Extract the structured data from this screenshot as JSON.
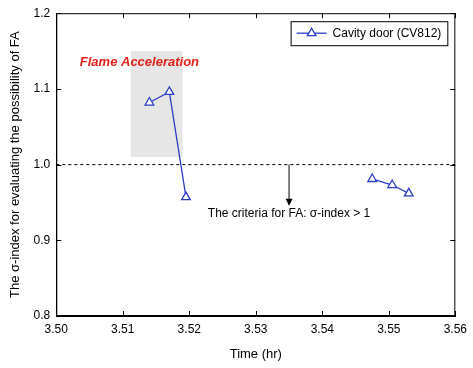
{
  "chart_data": {
    "type": "line",
    "x_label": "Time (hr)",
    "y_label": "The σ-index for evaluating the possibility of FA",
    "x": [
      3.514,
      3.517,
      3.5195,
      null,
      3.5475,
      3.5505,
      3.553
    ],
    "series": [
      {
        "name": "Cavity door (CV812)",
        "color": "#2a3bc4",
        "marker": "triangle",
        "values": [
          1.082,
          1.096,
          0.957,
          null,
          0.981,
          0.973,
          0.962
        ]
      }
    ],
    "xlim": [
      3.5,
      3.56
    ],
    "xticks": [
      {
        "value": 3.5,
        "label": "3.50"
      },
      {
        "value": 3.51,
        "label": "3.51"
      },
      {
        "value": 3.52,
        "label": "3.52"
      },
      {
        "value": 3.53,
        "label": "3.53"
      },
      {
        "value": 3.54,
        "label": "3.54"
      },
      {
        "value": 3.55,
        "label": "3.55"
      },
      {
        "value": 3.56,
        "label": "3.56"
      }
    ],
    "ylim": [
      0.8,
      1.2
    ],
    "yticks": [
      0.8,
      0.9,
      {
        "value": 1,
        "label": "1.0"
      },
      1.1,
      1.2
    ],
    "grid": false,
    "legend": "upper right",
    "reference_line": {
      "y": 1.0,
      "line_style": "dashed"
    },
    "shaded_region": {
      "x": [
        3.5112,
        3.519
      ],
      "y": [
        1.01,
        1.15
      ],
      "color": "#e6e6e6"
    },
    "annotations": [
      {
        "text": "Flame Acceleration",
        "x": 3.5125,
        "y": 1.135,
        "color": "#e0201b"
      },
      {
        "text": "The criteria for FA: σ-index > 1",
        "x": 3.535,
        "y": 0.935,
        "arrow_y": [
          1.0,
          0.947
        ]
      }
    ]
  }
}
